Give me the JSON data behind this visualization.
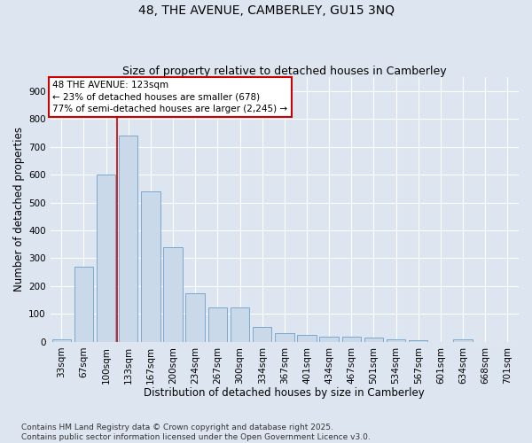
{
  "title1": "48, THE AVENUE, CAMBERLEY, GU15 3NQ",
  "title2": "Size of property relative to detached houses in Camberley",
  "xlabel": "Distribution of detached houses by size in Camberley",
  "ylabel": "Number of detached properties",
  "categories": [
    "33sqm",
    "67sqm",
    "100sqm",
    "133sqm",
    "167sqm",
    "200sqm",
    "234sqm",
    "267sqm",
    "300sqm",
    "334sqm",
    "367sqm",
    "401sqm",
    "434sqm",
    "467sqm",
    "501sqm",
    "534sqm",
    "567sqm",
    "601sqm",
    "634sqm",
    "668sqm",
    "701sqm"
  ],
  "values": [
    10,
    270,
    600,
    740,
    540,
    340,
    175,
    125,
    125,
    55,
    30,
    25,
    20,
    20,
    15,
    8,
    5,
    0,
    10,
    0,
    0
  ],
  "bar_color": "#c9d9ea",
  "bar_edge_color": "#7aa8cc",
  "vline_color": "#cc0000",
  "vline_position": 2.5,
  "annotation_text": "48 THE AVENUE: 123sqm\n← 23% of detached houses are smaller (678)\n77% of semi-detached houses are larger (2,245) →",
  "annotation_box_color": "#ffffff",
  "annotation_box_edge": "#cc0000",
  "ylim": [
    0,
    950
  ],
  "yticks": [
    0,
    100,
    200,
    300,
    400,
    500,
    600,
    700,
    800,
    900
  ],
  "background_color": "#dde6f0",
  "plot_bg_color": "#dde6f0",
  "footer_text": "Contains HM Land Registry data © Crown copyright and database right 2025.\nContains public sector information licensed under the Open Government Licence v3.0.",
  "title1_fontsize": 10,
  "title2_fontsize": 9,
  "xlabel_fontsize": 8.5,
  "ylabel_fontsize": 8.5,
  "tick_fontsize": 7.5,
  "annotation_fontsize": 7.5,
  "footer_fontsize": 6.5
}
